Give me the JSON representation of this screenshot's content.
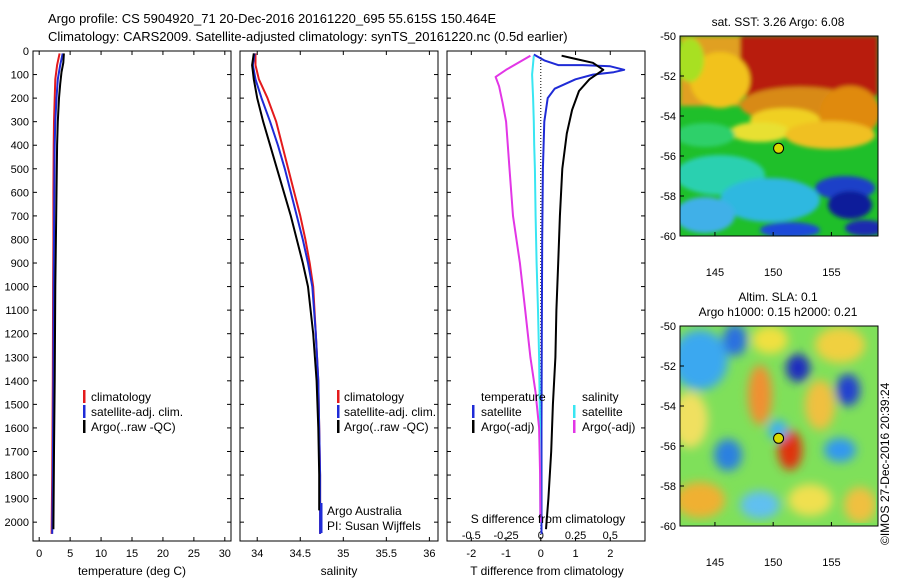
{
  "title_line1": "Argo profile: CS 5904920_71 20-Dec-2016 20161220_695 55.615S 150.464E",
  "title_line2": "Climatology: CARS2009. Satellite-adjusted climatology: synTS_20161220.nc (0.5d earlier)",
  "timestamp": "©IMOS 27-Dec-2016 20:39:24",
  "colors": {
    "climatology": "#e41a1c",
    "satellite": "#1f2bd6",
    "argo": "#000000",
    "sat_salinity": "#39e6f2",
    "argo_salinity_diff": "#e236e6"
  },
  "chart_data": [
    {
      "type": "line",
      "title": "",
      "xlabel": "temperature (deg C)",
      "ylabel": "",
      "xlim": [
        -1,
        31
      ],
      "ylim": [
        2080,
        0
      ],
      "xticks": [
        0,
        5,
        10,
        15,
        20,
        25,
        30
      ],
      "yticks": [
        0,
        100,
        200,
        300,
        400,
        500,
        600,
        700,
        800,
        900,
        1000,
        1100,
        1200,
        1300,
        1400,
        1500,
        1600,
        1700,
        1800,
        1900,
        2000
      ],
      "legend": [
        "climatology",
        "satellite-adj. clim.",
        "Argo(..raw -QC)"
      ],
      "series": [
        {
          "name": "climatology",
          "color": "#e41a1c",
          "points": [
            [
              3.3,
              10
            ],
            [
              2.9,
              60
            ],
            [
              2.6,
              120
            ],
            [
              2.5,
              200
            ],
            [
              2.4,
              300
            ],
            [
              2.35,
              400
            ],
            [
              2.3,
              600
            ],
            [
              2.3,
              800
            ],
            [
              2.25,
              1000
            ],
            [
              2.2,
              1400
            ],
            [
              2.1,
              1800
            ],
            [
              2.0,
              2050
            ]
          ]
        },
        {
          "name": "satellite-adj. clim.",
          "color": "#1f2bd6",
          "points": [
            [
              3.8,
              10
            ],
            [
              3.4,
              60
            ],
            [
              3.0,
              120
            ],
            [
              2.8,
              200
            ],
            [
              2.6,
              300
            ],
            [
              2.5,
              400
            ],
            [
              2.45,
              600
            ],
            [
              2.4,
              800
            ],
            [
              2.35,
              1000
            ],
            [
              2.3,
              1400
            ],
            [
              2.2,
              1800
            ],
            [
              2.1,
              2050
            ]
          ]
        },
        {
          "name": "Argo(..raw -QC)",
          "color": "#000000",
          "points": [
            [
              4.0,
              10
            ],
            [
              3.9,
              50
            ],
            [
              3.6,
              90
            ],
            [
              3.4,
              140
            ],
            [
              3.2,
              200
            ],
            [
              3.0,
              300
            ],
            [
              2.9,
              400
            ],
            [
              2.8,
              600
            ],
            [
              2.7,
              800
            ],
            [
              2.6,
              1000
            ],
            [
              2.5,
              1400
            ],
            [
              2.4,
              1700
            ],
            [
              2.3,
              2030
            ]
          ]
        }
      ]
    },
    {
      "type": "line",
      "title": "",
      "xlabel": "salinity",
      "ylabel": "",
      "xlim": [
        33.8,
        36.1
      ],
      "ylim": [
        2080,
        0
      ],
      "xticks": [
        34,
        34.5,
        35,
        35.5,
        36
      ],
      "legend": [
        "climatology",
        "satellite-adj. clim.",
        "Argo(..raw -QC)"
      ],
      "annotations": [
        "Argo Australia",
        "PI: Susan Wijffels"
      ],
      "series": [
        {
          "name": "climatology",
          "color": "#e41a1c",
          "points": [
            [
              33.98,
              10
            ],
            [
              33.98,
              60
            ],
            [
              34.02,
              120
            ],
            [
              34.12,
              200
            ],
            [
              34.22,
              300
            ],
            [
              34.29,
              400
            ],
            [
              34.36,
              500
            ],
            [
              34.43,
              600
            ],
            [
              34.5,
              700
            ],
            [
              34.56,
              800
            ],
            [
              34.61,
              900
            ],
            [
              34.65,
              1000
            ],
            [
              34.68,
              1200
            ],
            [
              34.71,
              1400
            ],
            [
              34.72,
              1600
            ],
            [
              34.73,
              1800
            ],
            [
              34.73,
              2050
            ]
          ]
        },
        {
          "name": "satellite-adj. clim.",
          "color": "#1f2bd6",
          "points": [
            [
              33.97,
              10
            ],
            [
              33.95,
              60
            ],
            [
              33.98,
              120
            ],
            [
              34.05,
              200
            ],
            [
              34.15,
              300
            ],
            [
              34.24,
              400
            ],
            [
              34.32,
              500
            ],
            [
              34.39,
              600
            ],
            [
              34.46,
              700
            ],
            [
              34.53,
              800
            ],
            [
              34.59,
              900
            ],
            [
              34.64,
              1000
            ],
            [
              34.68,
              1200
            ],
            [
              34.71,
              1400
            ],
            [
              34.72,
              1600
            ],
            [
              34.73,
              1800
            ],
            [
              34.73,
              2050
            ]
          ]
        },
        {
          "name": "Argo(..raw -QC)",
          "color": "#000000",
          "points": [
            [
              33.96,
              10
            ],
            [
              33.94,
              60
            ],
            [
              33.96,
              120
            ],
            [
              34.0,
              200
            ],
            [
              34.07,
              300
            ],
            [
              34.15,
              400
            ],
            [
              34.23,
              500
            ],
            [
              34.31,
              600
            ],
            [
              34.39,
              700
            ],
            [
              34.46,
              800
            ],
            [
              34.53,
              900
            ],
            [
              34.59,
              1000
            ],
            [
              34.65,
              1200
            ],
            [
              34.69,
              1400
            ],
            [
              34.71,
              1600
            ],
            [
              34.72,
              1800
            ],
            [
              34.72,
              1950
            ]
          ]
        }
      ]
    },
    {
      "type": "line",
      "title": "",
      "xlabel": "T difference from climatology",
      "xlabel2": "S difference from climatology",
      "ylabel": "",
      "xlim": [
        -2.7,
        3.0
      ],
      "ylim": [
        2080,
        0
      ],
      "xticks": [
        -2,
        -1,
        0,
        1,
        2
      ],
      "xticks_S": [
        -0.5,
        -0.25,
        0,
        0.25,
        0.5
      ],
      "legend_header": [
        "temperature",
        "salinity"
      ],
      "legend": [
        "satellite",
        "Argo(-adj)",
        "satellite",
        "Argo(-adj)"
      ],
      "series": [
        {
          "name": "temperature satellite",
          "color": "#1f2bd6",
          "points": [
            [
              -0.2,
              15
            ],
            [
              0.1,
              40
            ],
            [
              0.5,
              60
            ],
            [
              1.2,
              60
            ],
            [
              2.0,
              65
            ],
            [
              2.4,
              80
            ],
            [
              2.1,
              90
            ],
            [
              1.5,
              100
            ],
            [
              1.0,
              120
            ],
            [
              0.4,
              160
            ],
            [
              0.2,
              200
            ],
            [
              0.1,
              300
            ],
            [
              0.06,
              500
            ],
            [
              0.04,
              800
            ],
            [
              0.03,
              1200
            ],
            [
              0.02,
              1600
            ],
            [
              0.02,
              2050
            ]
          ]
        },
        {
          "name": "temperature Argo(-adj)",
          "color": "#000000",
          "points": [
            [
              0.6,
              20
            ],
            [
              0.9,
              30
            ],
            [
              1.5,
              50
            ],
            [
              1.8,
              80
            ],
            [
              1.4,
              120
            ],
            [
              1.1,
              170
            ],
            [
              0.9,
              250
            ],
            [
              0.75,
              350
            ],
            [
              0.62,
              500
            ],
            [
              0.55,
              700
            ],
            [
              0.5,
              900
            ],
            [
              0.45,
              1100
            ],
            [
              0.42,
              1300
            ],
            [
              0.35,
              1500
            ],
            [
              0.3,
              1700
            ],
            [
              0.22,
              1900
            ],
            [
              0.15,
              2030
            ]
          ]
        },
        {
          "name": "salinity satellite",
          "color": "#39e6f2",
          "points": [
            [
              -0.2,
              20
            ],
            [
              -0.25,
              100
            ],
            [
              -0.22,
              200
            ],
            [
              -0.2,
              300
            ],
            [
              -0.19,
              400
            ],
            [
              -0.17,
              500
            ],
            [
              -0.15,
              700
            ],
            [
              -0.12,
              900
            ],
            [
              -0.08,
              1100
            ],
            [
              -0.05,
              1300
            ],
            [
              -0.03,
              1500
            ],
            [
              -0.02,
              1700
            ],
            [
              -0.01,
              2000
            ]
          ]
        },
        {
          "name": "salinity Argo(-adj)",
          "color": "#e236e6",
          "points": [
            [
              -0.3,
              20
            ],
            [
              -1.0,
              80
            ],
            [
              -1.3,
              110
            ],
            [
              -1.2,
              150
            ],
            [
              -1.1,
              220
            ],
            [
              -1.0,
              300
            ],
            [
              -0.95,
              400
            ],
            [
              -0.9,
              500
            ],
            [
              -0.8,
              700
            ],
            [
              -0.6,
              900
            ],
            [
              -0.45,
              1100
            ],
            [
              -0.3,
              1300
            ],
            [
              -0.15,
              1450
            ],
            [
              -0.05,
              1600
            ],
            [
              -0.02,
              1800
            ],
            [
              -0.01,
              2000
            ]
          ]
        }
      ]
    },
    {
      "type": "heatmap",
      "title": "sat. SST: 3.26  Argo: 6.08",
      "xlim": [
        142,
        159
      ],
      "ylim": [
        -60,
        -50
      ],
      "xticks": [
        145,
        150,
        155
      ],
      "yticks": [
        -50,
        -52,
        -54,
        -56,
        -58,
        -60
      ],
      "argo_lon": 150.464,
      "argo_lat": -55.615
    },
    {
      "type": "heatmap",
      "title": "Altim. SLA: 0.1",
      "subtitle": "Argo h1000: 0.15 h2000: 0.21",
      "xlim": [
        142,
        159
      ],
      "ylim": [
        -60,
        -50
      ],
      "xticks": [
        145,
        150,
        155
      ],
      "yticks": [
        -50,
        -52,
        -54,
        -56,
        -58,
        -60
      ],
      "argo_lon": 150.464,
      "argo_lat": -55.615
    }
  ]
}
